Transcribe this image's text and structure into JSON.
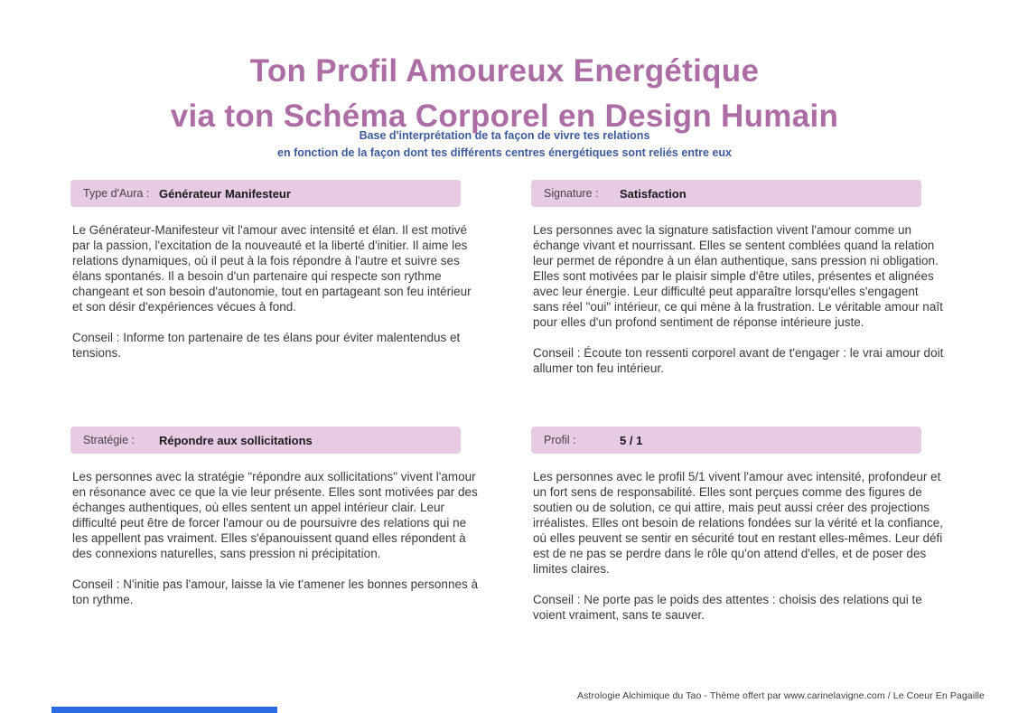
{
  "header": {
    "title_line1": "Ton Profil Amoureux Energétique",
    "title_line2": "via ton Schéma Corporel en Design Humain",
    "subtitle_line1": "Base d'interprétation de ta façon de vivre tes relations",
    "subtitle_line2": "en fonction de la façon dont tes différents centres énergétiques sont reliés entre eux"
  },
  "cards": [
    {
      "label": "Type d'Aura :",
      "value": "Générateur Manifesteur",
      "body": "Le Générateur-Manifesteur vit l'amour avec intensité et élan. Il est motivé par la passion, l'excitation de la nouveauté et la liberté d'initier. Il aime les relations dynamiques, où il peut à la fois répondre à l'autre et suivre ses élans spontanés. Il a besoin d'un partenaire qui respecte son rythme changeant et son besoin d'autonomie, tout en partageant son feu intérieur et son désir d'expériences vécues à fond.",
      "conseil": "Conseil : Informe ton partenaire de tes élans pour éviter malentendus et tensions."
    },
    {
      "label": "Signature :",
      "value": "Satisfaction",
      "body": "Les personnes avec la signature satisfaction vivent l'amour comme un échange vivant et nourrissant. Elles se sentent comblées quand la relation leur permet de répondre à un élan authentique, sans pression ni obligation. Elles sont motivées par le plaisir simple d'être utiles, présentes et alignées avec leur énergie. Leur difficulté peut apparaître lorsqu'elles s'engagent sans réel \"oui\" intérieur, ce qui mène à la frustration. Le véritable amour naît pour elles d'un profond sentiment de réponse intérieure juste.",
      "conseil": "Conseil : Écoute ton ressenti corporel avant de t'engager : le vrai amour doit allumer ton feu intérieur."
    },
    {
      "label": "Stratégie :",
      "value": "Répondre aux sollicitations",
      "body": "Les personnes avec la stratégie \"répondre aux sollicitations\" vivent l'amour en résonance avec ce que la vie leur présente. Elles sont motivées par des échanges authentiques, où elles sentent un appel intérieur clair. Leur difficulté peut être de forcer l'amour ou de poursuivre des relations qui ne les appellent pas vraiment. Elles s'épanouissent quand elles répondent à des connexions naturelles, sans pression ni précipitation.",
      "conseil": "Conseil : N'initie pas l'amour, laisse la vie t'amener les bonnes personnes à ton rythme."
    },
    {
      "label": "Profil :",
      "value": "5 / 1",
      "body": "Les personnes avec le profil 5/1 vivent l'amour avec intensité, profondeur et un fort sens de responsabilité. Elles sont perçues comme des figures de soutien ou de solution, ce qui attire, mais peut aussi créer des projections irréalistes. Elles ont besoin de relations fondées sur la vérité et la confiance, où elles peuvent se sentir en sécurité tout en restant elles-mêmes. Leur défi est de ne pas se perdre dans le rôle qu'on attend d'elles, et de poser des limites claires.",
      "conseil": "Conseil : Ne porte pas le poids des attentes : choisis des relations qui te voient vraiment, sans te sauver."
    }
  ],
  "footer": {
    "credit": "Astrologie Alchimique du Tao - Thème offert par www.carinelavigne.com / Le Coeur En Pagaille"
  },
  "colors": {
    "title": "#ac6ca4",
    "subtitle": "#3d5b9b",
    "band_background": "#e7cae3",
    "body_text": "#3a3a3a",
    "accent_bar": "#2b6be4"
  }
}
